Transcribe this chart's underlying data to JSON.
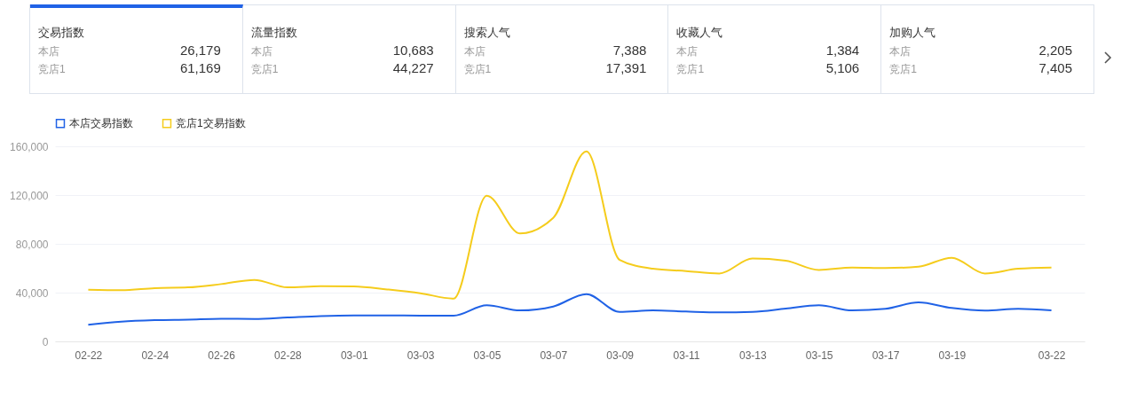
{
  "chart_data": [
    {
      "type": "other",
      "annotations": [
        "交易指数",
        "本店",
        "26,179",
        "竞店1",
        "61,169",
        "流量指数",
        "本店",
        "10,683",
        "竞店1",
        "44,227",
        "搜索人气",
        "本店",
        "7,388",
        "竞店1",
        "17,391",
        "收藏人气",
        "本店",
        "1,384",
        "竞店1",
        "5,106",
        "加购人气",
        "本店",
        "2,205",
        "竞店1",
        "7,405"
      ]
    },
    {
      "type": "line",
      "categories": [
        "02-22",
        null,
        "02-24",
        null,
        "02-26",
        null,
        "02-28",
        null,
        "03-01",
        null,
        "03-03",
        null,
        "03-05",
        null,
        "03-07",
        null,
        "03-09",
        null,
        "03-11",
        null,
        "03-13",
        null,
        "03-15",
        null,
        "03-17",
        null,
        "03-19",
        null,
        null,
        "03-22"
      ],
      "series": [
        {
          "name": "本店交易指数",
          "color": "#2062e6",
          "values": [
            13600,
            16200,
            17400,
            17900,
            18600,
            18400,
            19600,
            20800,
            21300,
            21300,
            21100,
            21100,
            29600,
            25400,
            28600,
            38800,
            24200,
            25400,
            24500,
            23800,
            24200,
            26900,
            29600,
            25400,
            26700,
            32000,
            27400,
            25200,
            26700,
            25400
          ]
        },
        {
          "name": "竞店1交易指数",
          "color": "#f5cc1c",
          "values": [
            42400,
            42000,
            43700,
            44300,
            47000,
            50400,
            44300,
            45300,
            45100,
            42600,
            39500,
            35100,
            119500,
            88500,
            101300,
            155800,
            66900,
            59600,
            57700,
            55700,
            68000,
            66200,
            58600,
            60600,
            60100,
            61300,
            68600,
            55700,
            59600,
            60600
          ]
        }
      ],
      "ylim": [
        0,
        160000
      ],
      "yticks": [
        0,
        {
          "value": 40000,
          "label": "40,000"
        },
        {
          "value": 80000,
          "label": "80,000"
        },
        {
          "value": 120000,
          "label": "120,000"
        },
        {
          "value": 160000,
          "label": "160,000"
        }
      ],
      "grid": "y",
      "legend": "top left"
    }
  ]
}
